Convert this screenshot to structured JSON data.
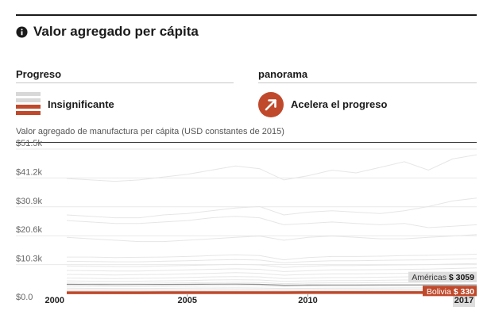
{
  "header": {
    "title": "Valor agregado per cápita",
    "icon": "info-circle-icon"
  },
  "progress": {
    "label": "Progreso",
    "status": "Insignificante",
    "icon": "stacked-bars-icon",
    "colors": {
      "highlight": "#c0492b",
      "muted": "#d8d8d8"
    }
  },
  "panorama": {
    "label": "panorama",
    "status": "Acelera el progreso",
    "icon": "arrow-up-right-icon",
    "color": "#c0492b"
  },
  "chart": {
    "caption": "Valor agregado de manufactura per cápita (USD constantes de 2015)",
    "y_tick_labels": [
      "$51.5k",
      "$41.2k",
      "$30.9k",
      "$20.6k",
      "$10.3k",
      "$0.0"
    ],
    "x_tick_labels": [
      "2000",
      "2005",
      "2010",
      "2017"
    ],
    "end_labels": [
      {
        "label": "Américas",
        "value": "$ 3059"
      },
      {
        "label": "Bolivia",
        "value": "$ 330"
      }
    ]
  },
  "chart_data": {
    "type": "line",
    "ylim": [
      0,
      51500
    ],
    "x": [
      2000,
      2001,
      2002,
      2003,
      2004,
      2005,
      2006,
      2007,
      2008,
      2009,
      2010,
      2011,
      2012,
      2013,
      2014,
      2015,
      2016,
      2017
    ],
    "series": [
      {
        "name": "Américas",
        "color": "#8c8c8c",
        "values": [
          3250,
          3200,
          3180,
          3190,
          3220,
          3260,
          3300,
          3330,
          3250,
          2950,
          3000,
          3020,
          3040,
          3050,
          3060,
          3070,
          3050,
          3059
        ]
      },
      {
        "name": "Bolivia",
        "color": "#c0492b",
        "values": [
          250,
          255,
          260,
          265,
          270,
          275,
          280,
          285,
          290,
          295,
          300,
          305,
          310,
          315,
          320,
          325,
          328,
          330
        ]
      },
      {
        "color": "#e6e6e6",
        "values": [
          41000,
          40500,
          40000,
          40500,
          41500,
          42500,
          44000,
          45500,
          44500,
          40500,
          42000,
          44000,
          43000,
          45000,
          47000,
          44000,
          48000,
          49500
        ]
      },
      {
        "color": "#e6e6e6",
        "values": [
          28000,
          27500,
          27000,
          27000,
          28000,
          28500,
          29500,
          30500,
          31000,
          28000,
          29000,
          29500,
          29000,
          28500,
          29500,
          31000,
          33000,
          34000
        ]
      },
      {
        "color": "#e6e6e6",
        "values": [
          26000,
          25500,
          25000,
          25000,
          25500,
          26000,
          27000,
          27500,
          27000,
          24500,
          25000,
          25500,
          25000,
          24500,
          25000,
          23500,
          24000,
          24500
        ]
      },
      {
        "color": "#e6e6e6",
        "values": [
          20000,
          19500,
          19000,
          18500,
          18500,
          19000,
          19500,
          20000,
          20500,
          19000,
          20000,
          20500,
          20000,
          19500,
          19500,
          20000,
          20500,
          21000
        ]
      },
      {
        "color": "#e6e6e6",
        "values": [
          13000,
          13000,
          12800,
          12900,
          13000,
          13200,
          13500,
          13800,
          13500,
          12000,
          12800,
          13200,
          13200,
          13300,
          13500,
          13600,
          13800,
          14000
        ]
      },
      {
        "color": "#e6e6e6",
        "values": [
          11500,
          11400,
          11300,
          11300,
          11500,
          11700,
          11900,
          12100,
          11900,
          10900,
          11400,
          11700,
          11700,
          11800,
          11900,
          12000,
          12200,
          12400
        ]
      },
      {
        "color": "#e6e6e6",
        "values": [
          9800,
          9700,
          9600,
          9600,
          9800,
          10000,
          10200,
          10400,
          10200,
          9300,
          9700,
          10000,
          10000,
          10100,
          10200,
          10300,
          10500,
          10700
        ]
      },
      {
        "color": "#e6e6e6",
        "values": [
          8200,
          8100,
          8000,
          8000,
          8200,
          8400,
          8600,
          8800,
          8600,
          7800,
          8100,
          8400,
          8400,
          8500,
          8600,
          8700,
          8900,
          9100
        ]
      },
      {
        "color": "#e6e6e6",
        "values": [
          6800,
          6700,
          6600,
          6700,
          6800,
          7000,
          7200,
          7400,
          7200,
          6500,
          6800,
          7000,
          7000,
          7100,
          7200,
          7300,
          7400,
          7600
        ]
      },
      {
        "color": "#e6e6e6",
        "values": [
          5500,
          5400,
          5300,
          5400,
          5500,
          5700,
          5900,
          6000,
          5900,
          5300,
          5500,
          5700,
          5700,
          5800,
          5900,
          6000,
          6100,
          6200
        ]
      },
      {
        "color": "#e6e6e6",
        "values": [
          4500,
          4400,
          4400,
          4400,
          4500,
          4600,
          4800,
          4900,
          4800,
          4300,
          4500,
          4600,
          4600,
          4700,
          4800,
          4800,
          4900,
          5000
        ]
      },
      {
        "color": "#e6e6e6",
        "values": [
          3700,
          3600,
          3600,
          3600,
          3700,
          3800,
          3900,
          4000,
          3900,
          3500,
          3700,
          3800,
          3800,
          3900,
          3900,
          4000,
          4000,
          4100
        ]
      },
      {
        "color": "#e6e6e6",
        "values": [
          2600,
          2550,
          2500,
          2500,
          2550,
          2600,
          2700,
          2800,
          2750,
          2500,
          2600,
          2650,
          2650,
          2700,
          2750,
          2800,
          2850,
          2900
        ]
      },
      {
        "color": "#e6e6e6",
        "values": [
          1900,
          1850,
          1800,
          1800,
          1850,
          1900,
          1950,
          2000,
          1950,
          1800,
          1850,
          1900,
          1900,
          1950,
          2000,
          2000,
          2050,
          2100
        ]
      },
      {
        "color": "#e6e6e6",
        "values": [
          1400,
          1380,
          1350,
          1350,
          1380,
          1400,
          1450,
          1500,
          1450,
          1350,
          1400,
          1420,
          1420,
          1450,
          1480,
          1500,
          1520,
          1550
        ]
      },
      {
        "color": "#e6e6e6",
        "values": [
          1000,
          980,
          960,
          960,
          980,
          1000,
          1030,
          1060,
          1040,
          960,
          1000,
          1020,
          1020,
          1040,
          1060,
          1080,
          1090,
          1100
        ]
      },
      {
        "color": "#e6e6e6",
        "values": [
          700,
          690,
          680,
          680,
          690,
          700,
          720,
          740,
          730,
          680,
          700,
          710,
          710,
          720,
          730,
          740,
          750,
          760
        ]
      },
      {
        "color": "#e6e6e6",
        "values": [
          450,
          445,
          440,
          440,
          445,
          450,
          460,
          470,
          465,
          440,
          450,
          455,
          455,
          460,
          465,
          470,
          475,
          480
        ]
      }
    ]
  }
}
